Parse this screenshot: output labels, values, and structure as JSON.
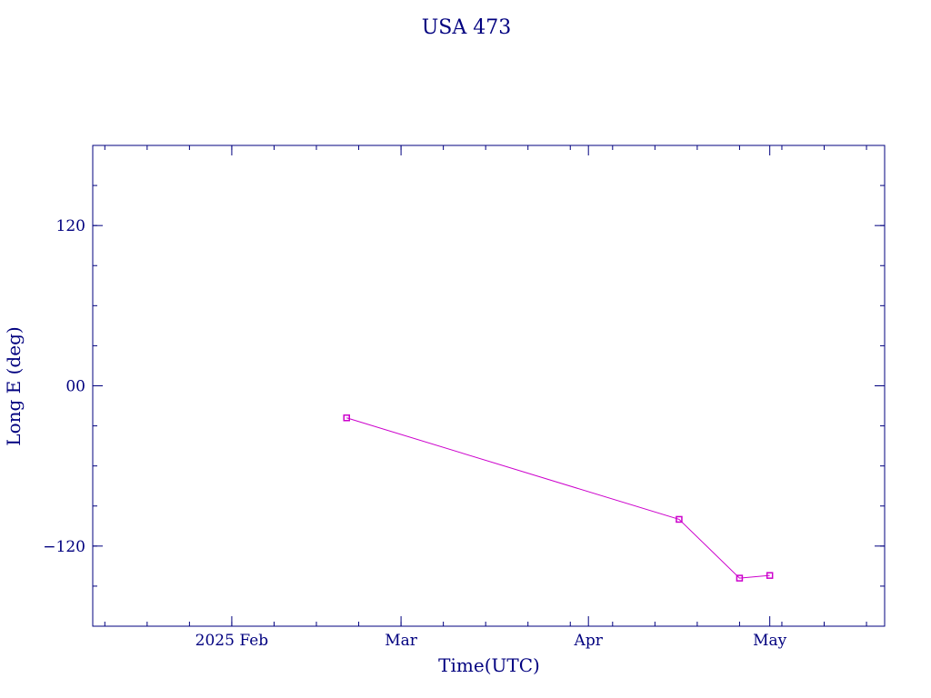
{
  "chart_data": {
    "type": "line",
    "title": "USA 473",
    "xlabel": "Time(UTC)",
    "ylabel": "Long E (deg)",
    "x_axis": {
      "type": "date",
      "range": [
        "2025-01-09",
        "2025-05-20"
      ],
      "major_ticks": [
        {
          "date": "2025-02-01",
          "label": "2025 Feb"
        },
        {
          "date": "2025-03-01",
          "label": "Mar"
        },
        {
          "date": "2025-04-01",
          "label": "Apr"
        },
        {
          "date": "2025-05-01",
          "label": "May"
        }
      ]
    },
    "y_axis": {
      "range": [
        -180,
        180
      ],
      "major_ticks": [
        {
          "value": 120,
          "label": "120"
        },
        {
          "value": 0,
          "label": "00"
        },
        {
          "value": -120,
          "label": "−120"
        }
      ],
      "minor_step": 30
    },
    "series": [
      {
        "color": "#cc00cc",
        "marker": "square",
        "points": [
          {
            "x": "2025-02-20",
            "y": -24
          },
          {
            "x": "2025-04-16",
            "y": -100
          },
          {
            "x": "2025-04-26",
            "y": -144
          },
          {
            "x": "2025-05-01",
            "y": -142
          }
        ]
      }
    ],
    "grid": false,
    "legend": "none",
    "axis_color": "#00007f"
  }
}
